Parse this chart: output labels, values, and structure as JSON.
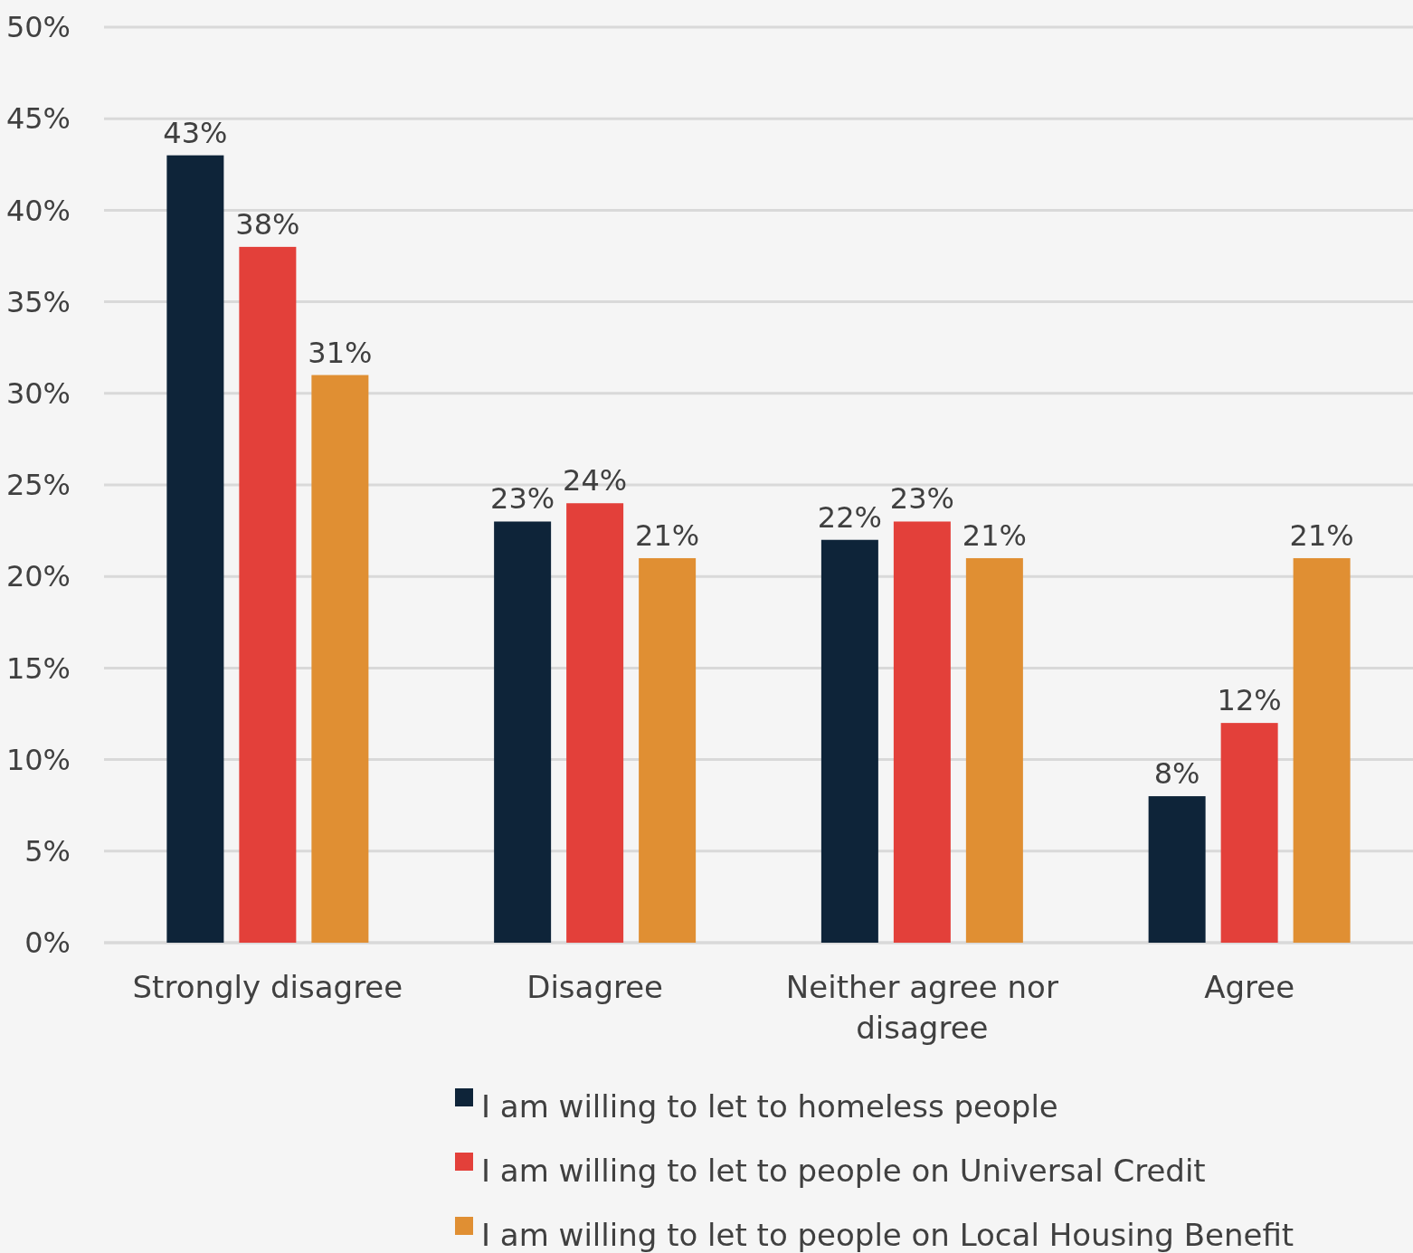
{
  "chart_data": {
    "type": "bar",
    "categories": [
      "Strongly disagree",
      "Disagree",
      "Neither agree nor disagree",
      "Agree"
    ],
    "series": [
      {
        "name": "I am willing to let to homeless people",
        "color": "#0e2439",
        "values": [
          43,
          23,
          22,
          8
        ],
        "value_labels": [
          "43%",
          "23%",
          "22%",
          "8%"
        ]
      },
      {
        "name": "I am willing to let to people on Universal Credit",
        "color": "#e3403a",
        "values": [
          38,
          24,
          23,
          12
        ],
        "value_labels": [
          "38%",
          "24%",
          "23%",
          "12%"
        ]
      },
      {
        "name": "I am willing to let to people on Local Housing Benefit",
        "color": "#e08f33",
        "values": [
          31,
          21,
          21,
          21
        ],
        "value_labels": [
          "31%",
          "21%",
          "21%",
          "21%"
        ]
      }
    ],
    "ylim": [
      0,
      50
    ],
    "yticks": [
      {
        "value": 0,
        "label": "0%"
      },
      {
        "value": 5,
        "label": "5%"
      },
      {
        "value": 10,
        "label": "10%"
      },
      {
        "value": 15,
        "label": "15%"
      },
      {
        "value": 20,
        "label": "20%"
      },
      {
        "value": 25,
        "label": "25%"
      },
      {
        "value": 30,
        "label": "30%"
      },
      {
        "value": 35,
        "label": "35%"
      },
      {
        "value": 40,
        "label": "40%"
      },
      {
        "value": 45,
        "label": "45%"
      },
      {
        "value": 50,
        "label": "50%"
      }
    ],
    "grid": "y",
    "legend": "bottom"
  }
}
